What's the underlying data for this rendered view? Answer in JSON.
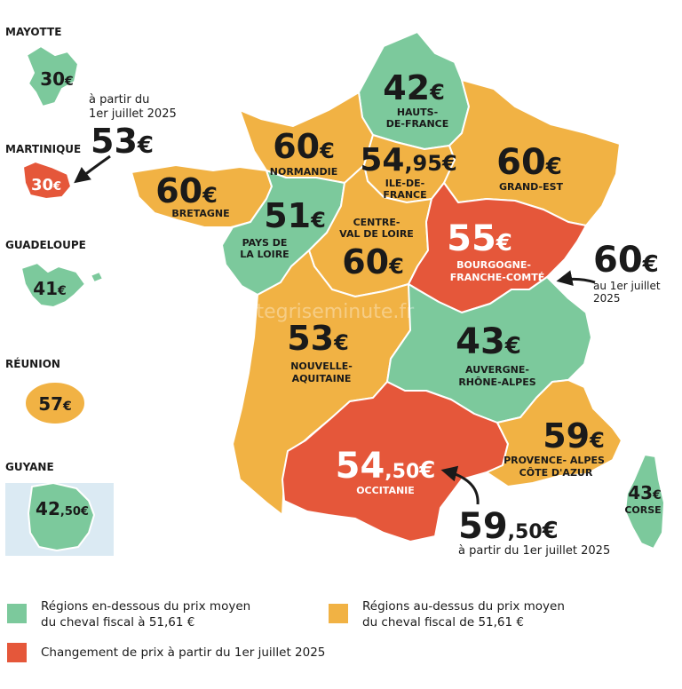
{
  "colors": {
    "below_avg": "#7cc99c",
    "above_avg": "#f1b244",
    "changed": "#e5573a",
    "text": "#1a1a1a"
  },
  "watermark": "cartegriseminute.fr",
  "regions": {
    "hauts_de_france": {
      "price_main": "42",
      "price_cents": "",
      "currency": "€",
      "name_lines": [
        "HAUTS-",
        "DE-FRANCE"
      ]
    },
    "normandie": {
      "price_main": "60",
      "price_cents": "",
      "currency": "€",
      "name_lines": [
        "NORMANDIE"
      ]
    },
    "ile_de_france": {
      "price_main": "54",
      "price_cents": ",95",
      "currency": "€",
      "name_lines": [
        "ILE-DE-",
        "FRANCE"
      ]
    },
    "grand_est": {
      "price_main": "60",
      "price_cents": "",
      "currency": "€",
      "name_lines": [
        "GRAND-EST"
      ]
    },
    "bretagne": {
      "price_main": "60",
      "price_cents": "",
      "currency": "€",
      "name_lines": [
        "BRETAGNE"
      ]
    },
    "pays_de_la_loire": {
      "price_main": "51",
      "price_cents": "",
      "currency": "€",
      "name_lines": [
        "PAYS DE",
        "LA LOIRE"
      ]
    },
    "centre_val_de_loire": {
      "price_main": "60",
      "price_cents": "",
      "currency": "€",
      "name_lines": [
        "CENTRE-",
        "VAL DE LOIRE"
      ]
    },
    "bourgogne_franche_comte": {
      "price_main": "55",
      "price_cents": "",
      "currency": "€",
      "name_lines": [
        "BOURGOGNE-",
        "FRANCHE-COMTÉ"
      ]
    },
    "nouvelle_aquitaine": {
      "price_main": "53",
      "price_cents": "",
      "currency": "€",
      "name_lines": [
        "NOUVELLE-",
        "AQUITAINE"
      ]
    },
    "auvergne_rhone_alpes": {
      "price_main": "43",
      "price_cents": "",
      "currency": "€",
      "name_lines": [
        "AUVERGNE-",
        "RHÔNE-ALPES"
      ]
    },
    "occitanie": {
      "price_main": "54",
      "price_cents": ",50",
      "currency": "€",
      "name_lines": [
        "OCCITANIE"
      ]
    },
    "paca": {
      "price_main": "59",
      "price_cents": "",
      "currency": "€",
      "name_lines": [
        "PROVENCE- ALPES",
        "CÔTE D'AZUR"
      ]
    },
    "corse": {
      "price_main": "43",
      "price_cents": "",
      "currency": "€",
      "name_lines": [
        "CORSE"
      ]
    }
  },
  "overseas": {
    "mayotte": {
      "name": "MAYOTTE",
      "price_main": "30",
      "price_cents": "",
      "currency": "€"
    },
    "martinique": {
      "name": "MARTINIQUE",
      "price_main": "30",
      "price_cents": "",
      "currency": "€"
    },
    "guadeloupe": {
      "name": "GUADELOUPE",
      "price_main": "41",
      "price_cents": "",
      "currency": "€"
    },
    "reunion": {
      "name": "RÉUNION",
      "price_main": "57",
      "price_cents": "",
      "currency": "€"
    },
    "guyane": {
      "name": "GUYANE",
      "price_main": "42",
      "price_cents": ",50",
      "currency": "€"
    }
  },
  "changes": {
    "martinique": {
      "note_lines": [
        "à partir du",
        "1er juillet 2025"
      ],
      "price_main": "53",
      "price_cents": "",
      "currency": "€"
    },
    "bourgogne_franche_comte": {
      "note_lines": [
        "au 1er juillet",
        "2025"
      ],
      "price_main": "60",
      "price_cents": "",
      "currency": "€"
    },
    "occitanie": {
      "note_lines": [
        "à partir du 1er juillet 2025"
      ],
      "price_main": "59",
      "price_cents": ",50",
      "currency": "€"
    }
  },
  "legend": {
    "below_line1": "Régions en-dessous du prix moyen",
    "below_line2": "du cheval fiscal à 51,61 €",
    "above_line1": "Régions au-dessus du prix moyen",
    "above_line2": "du cheval fiscal de 51,61 €",
    "changed": "Changement de prix à partir du 1er juillet 2025"
  }
}
